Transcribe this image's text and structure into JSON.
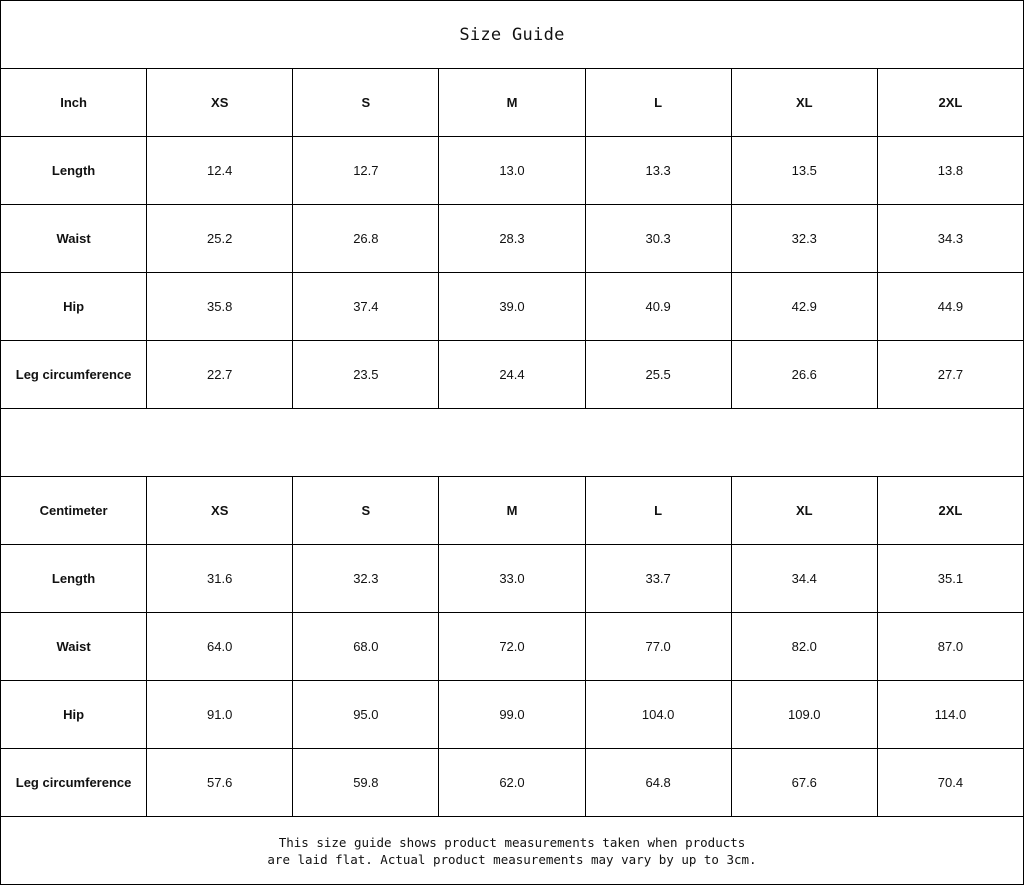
{
  "title": "Size Guide",
  "sizes": [
    "XS",
    "S",
    "M",
    "L",
    "XL",
    "2XL"
  ],
  "inch": {
    "unit_label": "Inch",
    "rows": [
      {
        "label": "Length",
        "values": [
          "12.4",
          "12.7",
          "13.0",
          "13.3",
          "13.5",
          "13.8"
        ]
      },
      {
        "label": "Waist",
        "values": [
          "25.2",
          "26.8",
          "28.3",
          "30.3",
          "32.3",
          "34.3"
        ]
      },
      {
        "label": "Hip",
        "values": [
          "35.8",
          "37.4",
          "39.0",
          "40.9",
          "42.9",
          "44.9"
        ]
      },
      {
        "label": "Leg circumference",
        "values": [
          "22.7",
          "23.5",
          "24.4",
          "25.5",
          "26.6",
          "27.7"
        ]
      }
    ]
  },
  "centimeter": {
    "unit_label": "Centimeter",
    "rows": [
      {
        "label": "Length",
        "values": [
          "31.6",
          "32.3",
          "33.0",
          "33.7",
          "34.4",
          "35.1"
        ]
      },
      {
        "label": "Waist",
        "values": [
          "64.0",
          "68.0",
          "72.0",
          "77.0",
          "82.0",
          "87.0"
        ]
      },
      {
        "label": "Hip",
        "values": [
          "91.0",
          "95.0",
          "99.0",
          "104.0",
          "109.0",
          "114.0"
        ]
      },
      {
        "label": "Leg circumference",
        "values": [
          "57.6",
          "59.8",
          "62.0",
          "64.8",
          "67.6",
          "70.4"
        ]
      }
    ]
  },
  "note": {
    "line1": "This size guide shows product measurements taken when products",
    "line2": "are laid flat. Actual product measurements may vary by up to 3cm."
  }
}
